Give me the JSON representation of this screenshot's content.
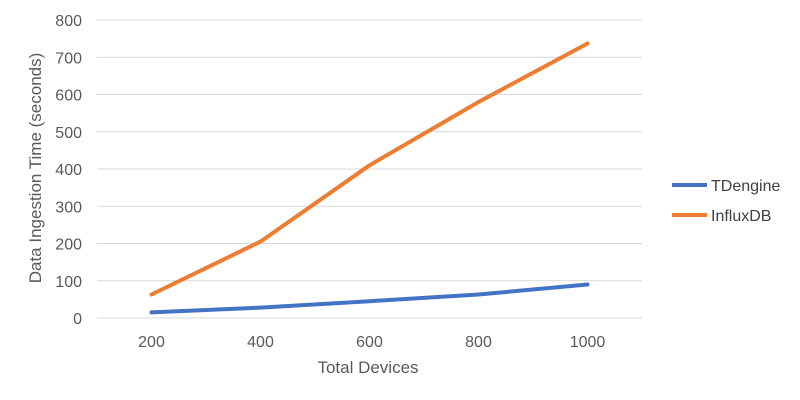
{
  "chart_data": {
    "type": "line",
    "title": "",
    "xlabel": "Total Devices",
    "ylabel": "Data Ingestion Time (seconds)",
    "x": [
      200,
      400,
      600,
      800,
      1000
    ],
    "ylim": [
      0,
      800
    ],
    "yticks": [
      0,
      100,
      200,
      300,
      400,
      500,
      600,
      700,
      800
    ],
    "grid": true,
    "legend_position": "right",
    "series": [
      {
        "name": "TDengine",
        "color": "#4472C4",
        "values": [
          15,
          28,
          45,
          63,
          90
        ]
      },
      {
        "name": "InfluxDB",
        "color": "#ED7D31",
        "values": [
          63,
          205,
          410,
          580,
          737
        ]
      }
    ]
  }
}
